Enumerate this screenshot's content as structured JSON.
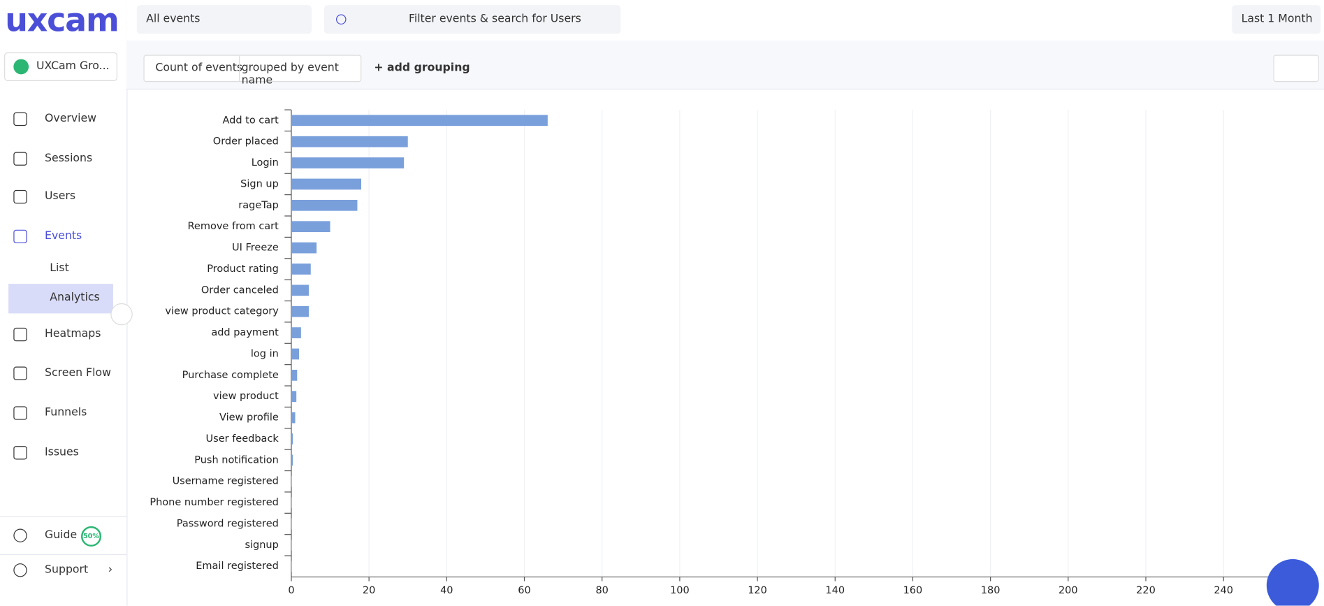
{
  "app": {
    "logo": "uxcam",
    "workspace": "UXCam Gro...",
    "nav": [
      "Overview",
      "Sessions",
      "Users",
      "Events",
      "List",
      "Analytics",
      "Heatmaps",
      "Screen Flow",
      "Funnels",
      "Issues"
    ],
    "guide": "Guide",
    "guide_progress": "50%",
    "support": "Support"
  },
  "toolbar": {
    "event_select": "All events",
    "search": "Filter events & search for Users",
    "date_range": "Last 1 Month",
    "metric": "Count of events",
    "grouping": "grouped by event name",
    "add_grouping": "+ add grouping"
  },
  "chart_data": {
    "type": "hbar",
    "color": "#7aa0dc",
    "categories": [
      "Add to cart",
      "Order placed",
      "Login",
      "Sign up",
      "rageTap",
      "Remove from cart",
      "UI Freeze",
      "Product rating",
      "Order canceled",
      "view product category",
      "add payment",
      "log in",
      "Purchase complete",
      "view product",
      "View profile",
      "User feedback",
      "Push notification",
      "Username registered",
      "Phone number registered",
      "Password registered",
      "signup",
      "Email registered"
    ],
    "values": [
      66,
      30,
      29,
      18,
      17,
      10,
      6.5,
      5,
      4.5,
      4.5,
      2.5,
      2,
      1.5,
      1.3,
      1,
      0.4,
      0.4,
      0.1,
      0.1,
      0.1,
      0.1,
      0.1
    ],
    "xlim": [
      0,
      260
    ],
    "xticks": [
      0,
      20,
      40,
      60,
      80,
      100,
      120,
      140,
      160,
      180,
      200,
      220,
      240
    ],
    "grid": true
  }
}
